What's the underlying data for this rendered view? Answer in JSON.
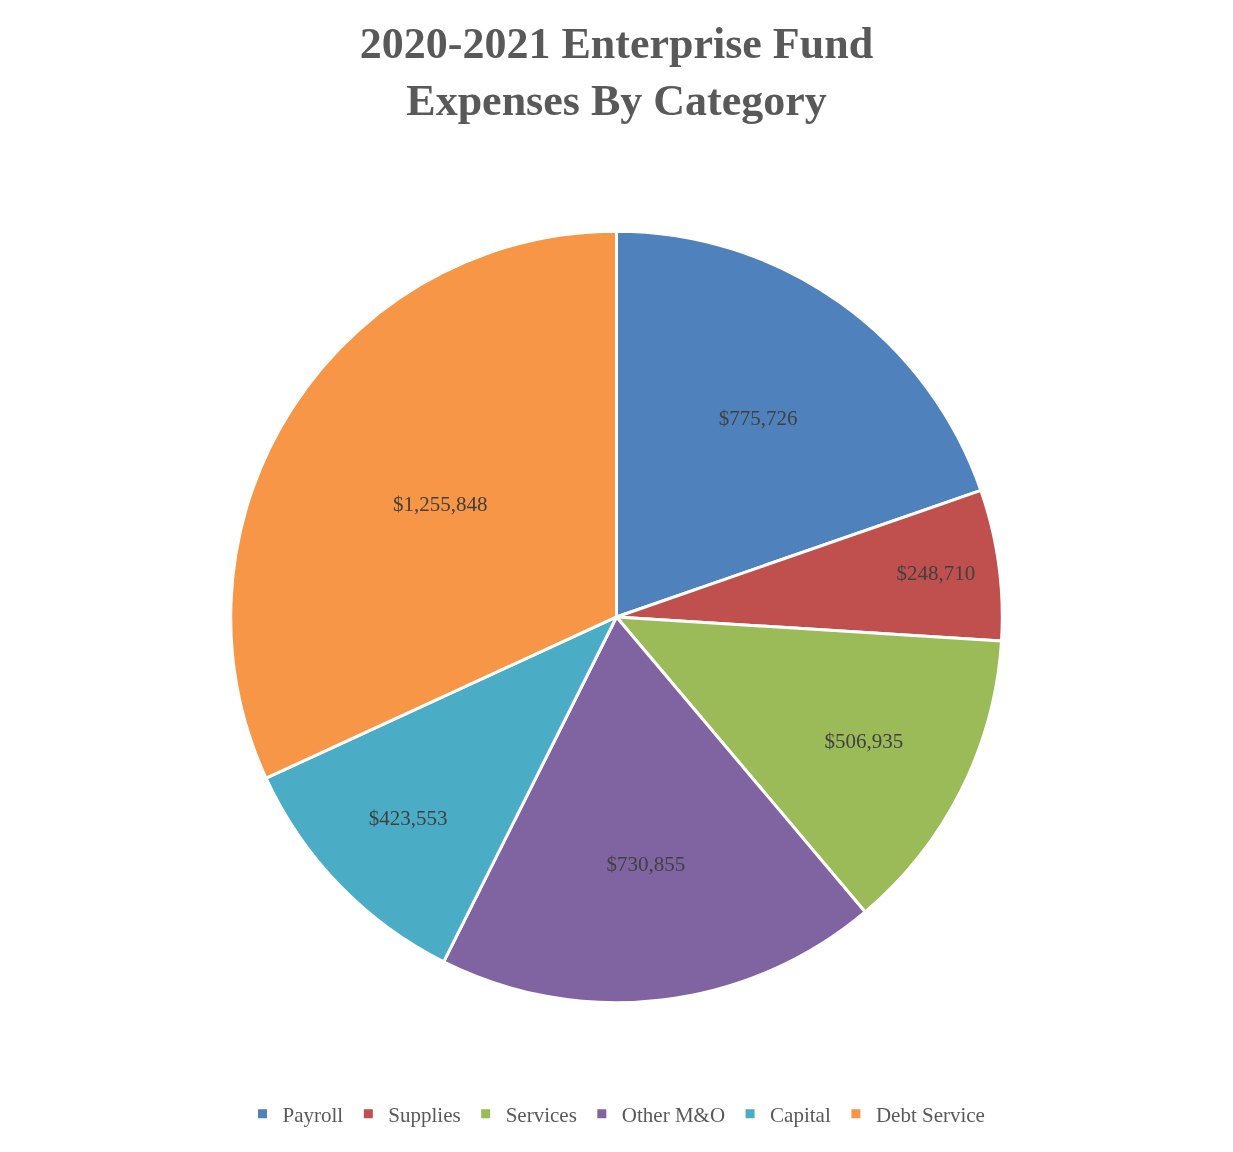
{
  "chart_data": {
    "type": "pie",
    "title": "2020-2021 Enterprise Fund\nExpenses By Category",
    "categories": [
      "Payroll",
      "Supplies",
      "Services",
      "Other M&O",
      "Capital",
      "Debt Service"
    ],
    "values": [
      775726,
      248710,
      506935,
      730855,
      423553,
      1255848
    ],
    "value_labels": [
      "$775,726",
      "$248,710",
      "$506,935",
      "$730,855",
      "$423,553",
      "$1,255,848"
    ],
    "colors": [
      "#4f81bd",
      "#c0504d",
      "#9bbb59",
      "#8064a2",
      "#4bacc6",
      "#f79646"
    ],
    "legend": "bottom"
  }
}
